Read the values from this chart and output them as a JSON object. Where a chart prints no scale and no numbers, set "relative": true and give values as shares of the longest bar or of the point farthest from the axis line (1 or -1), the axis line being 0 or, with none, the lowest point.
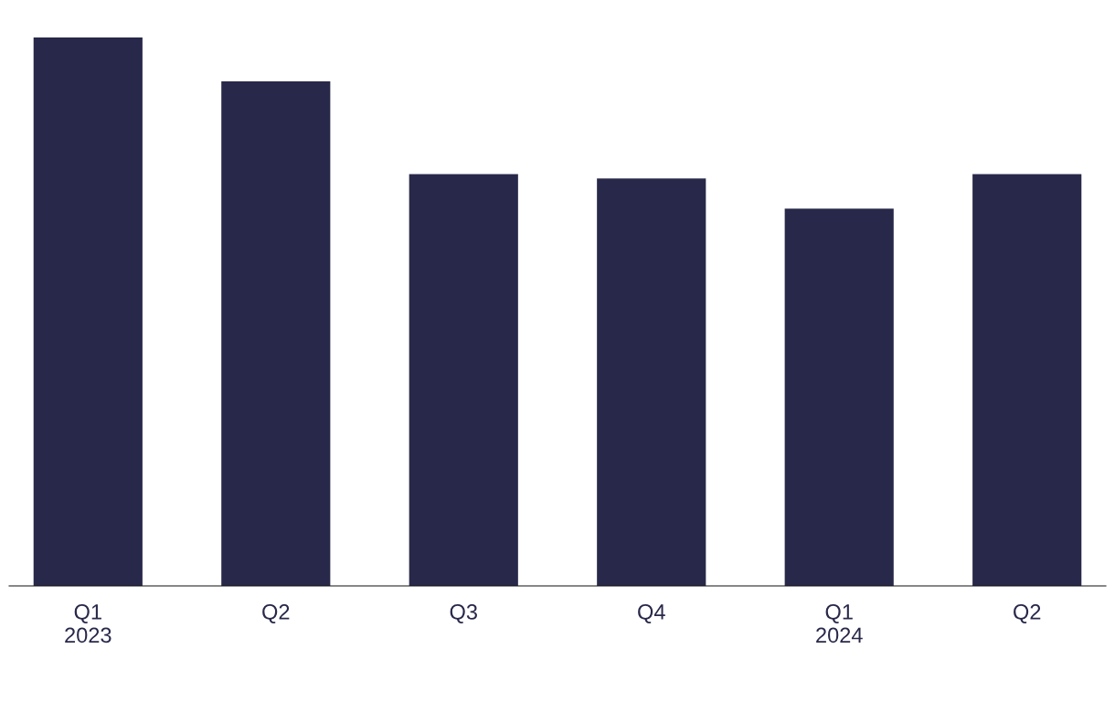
{
  "chart_data": {
    "type": "bar",
    "relative": true,
    "categories": [
      "Q1\n2023",
      "Q2",
      "Q3",
      "Q4",
      "Q1\n2024",
      "Q2"
    ],
    "values": [
      1,
      0.92,
      0.751,
      0.743,
      0.688,
      0.751
    ],
    "color": "#28284a",
    "grid": false,
    "legend": false
  }
}
